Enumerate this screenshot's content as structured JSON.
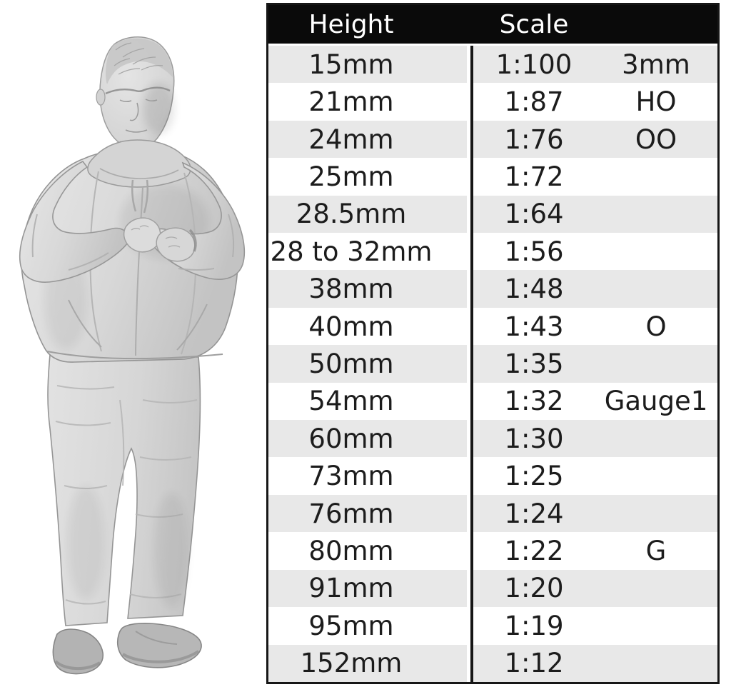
{
  "chart_data": {
    "type": "table",
    "columns": [
      "Height",
      "Scale"
    ],
    "rows": [
      {
        "height": "15mm",
        "ratio": "1:100",
        "gauge": "3mm"
      },
      {
        "height": "21mm",
        "ratio": "1:87",
        "gauge": "HO"
      },
      {
        "height": "24mm",
        "ratio": "1:76",
        "gauge": "OO"
      },
      {
        "height": "25mm",
        "ratio": "1:72",
        "gauge": ""
      },
      {
        "height": "28.5mm",
        "ratio": "1:64",
        "gauge": ""
      },
      {
        "height": "28 to 32mm",
        "ratio": "1:56",
        "gauge": ""
      },
      {
        "height": "38mm",
        "ratio": "1:48",
        "gauge": ""
      },
      {
        "height": "40mm",
        "ratio": "1:43",
        "gauge": "O"
      },
      {
        "height": "50mm",
        "ratio": "1:35",
        "gauge": ""
      },
      {
        "height": "54mm",
        "ratio": "1:32",
        "gauge": "Gauge1"
      },
      {
        "height": "60mm",
        "ratio": "1:30",
        "gauge": ""
      },
      {
        "height": "73mm",
        "ratio": "1:25",
        "gauge": ""
      },
      {
        "height": "76mm",
        "ratio": "1:24",
        "gauge": ""
      },
      {
        "height": "80mm",
        "ratio": "1:22",
        "gauge": "G"
      },
      {
        "height": "91mm",
        "ratio": "1:20",
        "gauge": ""
      },
      {
        "height": "95mm",
        "ratio": "1:19",
        "gauge": ""
      },
      {
        "height": "152mm",
        "ratio": "1:12",
        "gauge": ""
      }
    ],
    "layout": {
      "header_style": "black band, white text",
      "stripe": "alternating rows starting grey",
      "legend_position": "none",
      "grid": "outer border + single column divider"
    }
  },
  "colors": {
    "header_bg": "#0a0a0a",
    "header_text": "#ffffff",
    "row_stripe": "#e8e8e8",
    "row_plain": "#ffffff",
    "border": "#161616",
    "cell_text": "#1c1c1c"
  },
  "figure": {
    "description": "Greyscale 3D scan of a heavyset man in a hooded jacket and jeans, looking down at the wristwatch on his raised arms"
  }
}
